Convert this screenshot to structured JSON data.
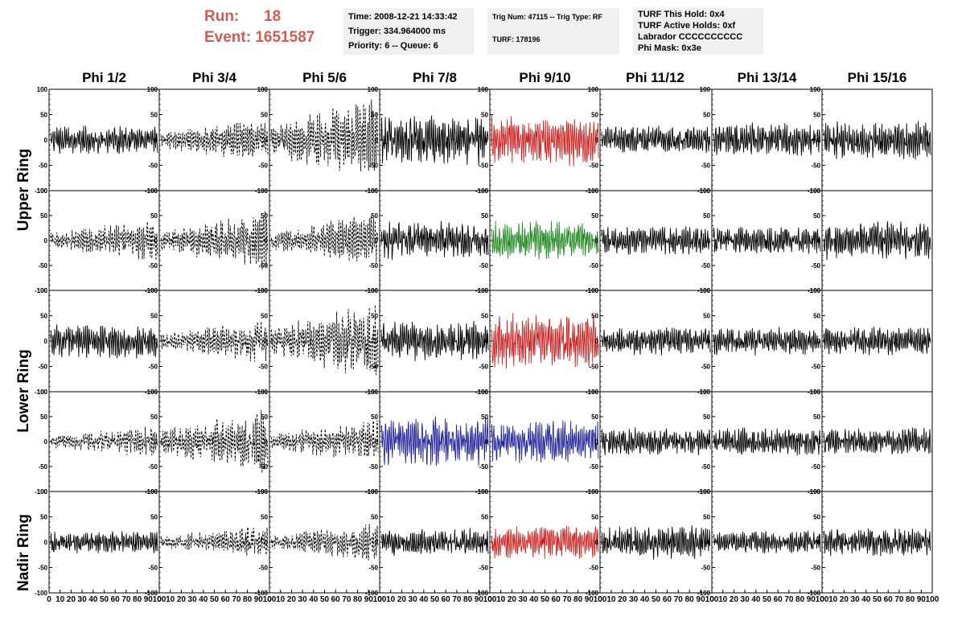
{
  "header": {
    "run_label": "Run:",
    "run_value": "18",
    "event_label": "Event:",
    "event_value": "1651587",
    "time": "Time: 2008-12-21 14:33:42",
    "trigger": "Trigger: 334.964000 ms",
    "priority": "Priority: 6 -- Queue: 6",
    "trig_num": "Trig Num: 47115 -- Trig Type: RF",
    "turf": "TURF: 178196",
    "turf_this_hold": "TURF This Hold: 0x4",
    "turf_active_holds": "TURF Active Holds: 0xf",
    "labrador": "Labrador CCCCCCCCCC",
    "phi_mask": "Phi Mask: 0x3e"
  },
  "columns": [
    "Phi 1/2",
    "Phi 3/4",
    "Phi 5/6",
    "Phi 7/8",
    "Phi 9/10",
    "Phi 11/12",
    "Phi 13/14",
    "Phi 15/16"
  ],
  "rows": [
    "Upper Ring",
    "Lower Ring",
    "Nadir Ring"
  ],
  "colors": {
    "red": "#cc2222",
    "green": "#228822",
    "blue": "#22229a",
    "black": "#000000",
    "title": "#d35a55"
  },
  "chart_data": {
    "type": "line",
    "panel_grid": {
      "rows": 5,
      "cols": 8
    },
    "xlim": [
      0,
      100
    ],
    "ylim": [
      -100,
      100
    ],
    "y_ticks": [
      -100,
      -50,
      0,
      50,
      100
    ],
    "x_ticks": [
      0,
      10,
      20,
      30,
      40,
      50,
      60,
      70,
      80,
      90,
      100
    ],
    "panels": [
      {
        "row": 0,
        "col": 0,
        "style": "solid",
        "color": "black",
        "amplitude": 25
      },
      {
        "row": 0,
        "col": 1,
        "style": "dashed",
        "color": "black",
        "amplitude": 40
      },
      {
        "row": 0,
        "col": 2,
        "style": "dashed",
        "color": "black",
        "amplitude": 80
      },
      {
        "row": 0,
        "col": 3,
        "style": "solid",
        "color": "black",
        "amplitude": 45
      },
      {
        "row": 0,
        "col": 4,
        "style": "solid",
        "color": "red",
        "amplitude": 45
      },
      {
        "row": 0,
        "col": 5,
        "style": "solid",
        "color": "black",
        "amplitude": 25
      },
      {
        "row": 0,
        "col": 6,
        "style": "solid",
        "color": "black",
        "amplitude": 30
      },
      {
        "row": 0,
        "col": 7,
        "style": "solid",
        "color": "black",
        "amplitude": 35
      },
      {
        "row": 1,
        "col": 0,
        "style": "dashed",
        "color": "black",
        "amplitude": 40
      },
      {
        "row": 1,
        "col": 1,
        "style": "dashed",
        "color": "black",
        "amplitude": 55
      },
      {
        "row": 1,
        "col": 2,
        "style": "dashed",
        "color": "black",
        "amplitude": 50
      },
      {
        "row": 1,
        "col": 3,
        "style": "solid",
        "color": "black",
        "amplitude": 35
      },
      {
        "row": 1,
        "col": 4,
        "style": "solid",
        "color": "green",
        "amplitude": 35
      },
      {
        "row": 1,
        "col": 5,
        "style": "solid",
        "color": "black",
        "amplitude": 25
      },
      {
        "row": 1,
        "col": 6,
        "style": "solid",
        "color": "black",
        "amplitude": 25
      },
      {
        "row": 1,
        "col": 7,
        "style": "solid",
        "color": "black",
        "amplitude": 35
      },
      {
        "row": 2,
        "col": 0,
        "style": "solid",
        "color": "black",
        "amplitude": 30
      },
      {
        "row": 2,
        "col": 1,
        "style": "dashed",
        "color": "black",
        "amplitude": 40
      },
      {
        "row": 2,
        "col": 2,
        "style": "dashed",
        "color": "black",
        "amplitude": 70
      },
      {
        "row": 2,
        "col": 3,
        "style": "solid",
        "color": "black",
        "amplitude": 35
      },
      {
        "row": 2,
        "col": 4,
        "style": "solid",
        "color": "red",
        "amplitude": 50
      },
      {
        "row": 2,
        "col": 5,
        "style": "solid",
        "color": "black",
        "amplitude": 25
      },
      {
        "row": 2,
        "col": 6,
        "style": "solid",
        "color": "black",
        "amplitude": 25
      },
      {
        "row": 2,
        "col": 7,
        "style": "solid",
        "color": "black",
        "amplitude": 25
      },
      {
        "row": 3,
        "col": 0,
        "style": "dashed",
        "color": "black",
        "amplitude": 30
      },
      {
        "row": 3,
        "col": 1,
        "style": "dashed",
        "color": "black",
        "amplitude": 60
      },
      {
        "row": 3,
        "col": 2,
        "style": "dashed",
        "color": "black",
        "amplitude": 40
      },
      {
        "row": 3,
        "col": 3,
        "style": "solid",
        "color": "blue",
        "amplitude": 45
      },
      {
        "row": 3,
        "col": 4,
        "style": "solid",
        "color": "blue",
        "amplitude": 40
      },
      {
        "row": 3,
        "col": 5,
        "style": "solid",
        "color": "black",
        "amplitude": 25
      },
      {
        "row": 3,
        "col": 6,
        "style": "solid",
        "color": "black",
        "amplitude": 25
      },
      {
        "row": 3,
        "col": 7,
        "style": "solid",
        "color": "black",
        "amplitude": 25
      },
      {
        "row": 4,
        "col": 0,
        "style": "solid",
        "color": "black",
        "amplitude": 20
      },
      {
        "row": 4,
        "col": 1,
        "style": "dashed",
        "color": "black",
        "amplitude": 30
      },
      {
        "row": 4,
        "col": 2,
        "style": "dashed",
        "color": "black",
        "amplitude": 35
      },
      {
        "row": 4,
        "col": 3,
        "style": "solid",
        "color": "black",
        "amplitude": 25
      },
      {
        "row": 4,
        "col": 4,
        "style": "solid",
        "color": "red",
        "amplitude": 30
      },
      {
        "row": 4,
        "col": 5,
        "style": "solid",
        "color": "black",
        "amplitude": 30
      },
      {
        "row": 4,
        "col": 6,
        "style": "solid",
        "color": "black",
        "amplitude": 20
      },
      {
        "row": 4,
        "col": 7,
        "style": "solid",
        "color": "black",
        "amplitude": 25
      }
    ]
  }
}
